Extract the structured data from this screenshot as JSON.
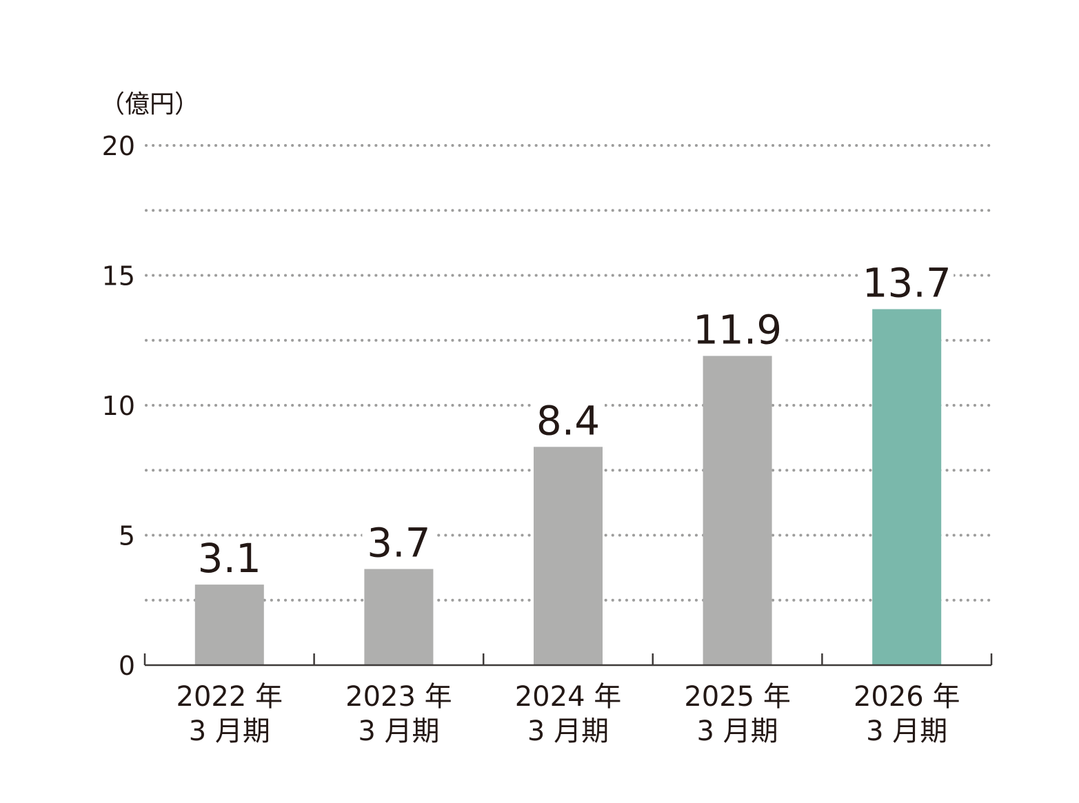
{
  "chart_data": {
    "type": "bar",
    "unit_label": "（億円）",
    "categories": [
      [
        "2022 年",
        "3 月期"
      ],
      [
        "2023 年",
        "3 月期"
      ],
      [
        "2024 年",
        "3 月期"
      ],
      [
        "2025 年",
        "3 月期"
      ],
      [
        "2026 年",
        "3 月期"
      ]
    ],
    "values": [
      3.1,
      3.7,
      8.4,
      11.9,
      13.7
    ],
    "value_labels": [
      "3.1",
      "3.7",
      "8.4",
      "11.9",
      "13.7"
    ],
    "ylim": [
      0,
      20
    ],
    "yticks": [
      0,
      5,
      10,
      15,
      20
    ],
    "ytick_labels": [
      "0",
      "5",
      "10",
      "15",
      "20"
    ],
    "gridlines": [
      2.5,
      5,
      7.5,
      10,
      12.5,
      15,
      17.5,
      20
    ],
    "grid": true,
    "grid_style": "dotted",
    "colors": {
      "bar": "#afafae",
      "highlight_bar": "#7ab8ab",
      "grid": "#9d9d9c",
      "axis": "#3e3a39",
      "text": "#231815"
    },
    "highlight_index": 4
  }
}
